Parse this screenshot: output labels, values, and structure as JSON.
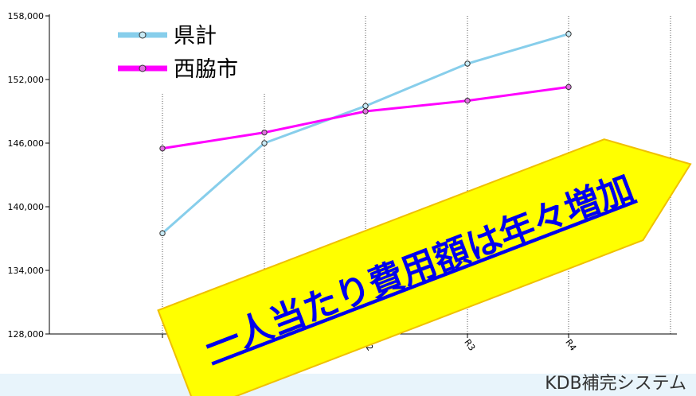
{
  "chart_data": {
    "type": "line",
    "categories": [
      "",
      "",
      "R2",
      "R3",
      "R4"
    ],
    "series": [
      {
        "name": "県計",
        "values": [
          137500,
          146000,
          149500,
          153500,
          156300
        ],
        "color": "#87ceeb"
      },
      {
        "name": "西脇市",
        "values": [
          145500,
          147000,
          149000,
          150000,
          151300
        ],
        "color": "#ff00ff"
      }
    ],
    "y_ticks": [
      "128,000",
      "134,000",
      "140,000",
      "146,000",
      "152,000",
      "158,000"
    ],
    "y_tick_values": [
      128000,
      134000,
      140000,
      146000,
      152000,
      158000
    ],
    "ylim": [
      128000,
      158000
    ],
    "legend_position": "top-left",
    "title": "",
    "xlabel": "",
    "ylabel": ""
  },
  "callout": {
    "text": "一人当たり費用額は年々増加",
    "fill": "#ffff00",
    "text_color": "#0000ee"
  },
  "source_note": "KDB補完システム"
}
